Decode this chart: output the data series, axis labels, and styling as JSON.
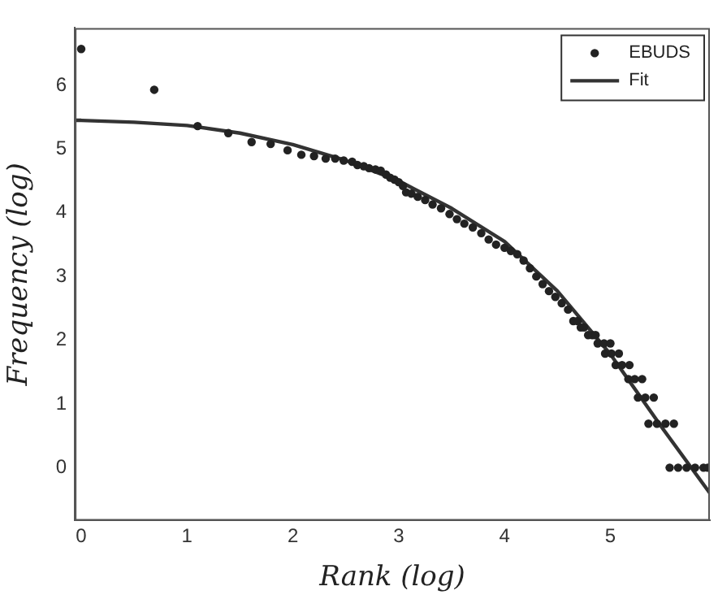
{
  "chart_data": {
    "type": "scatter",
    "xlabel": "Rank (log)",
    "ylabel": "Frequency (log)",
    "xlim": [
      -0.06,
      5.94
    ],
    "ylim": [
      -0.83,
      6.9
    ],
    "xticks": [
      0,
      1,
      2,
      3,
      4,
      5
    ],
    "yticks": [
      0,
      1,
      2,
      3,
      4,
      5,
      6
    ],
    "grid": false,
    "legend": "top right",
    "marker": "circle",
    "series": [
      {
        "name": "EBUDS",
        "color": "#222222",
        "x": [
          0,
          0.69,
          1.1,
          1.39,
          1.61,
          1.79,
          1.95,
          2.08,
          2.2,
          2.31,
          2.4,
          2.48,
          2.56,
          2.61,
          2.67,
          2.72,
          2.78,
          2.83,
          2.88,
          2.92,
          2.96,
          3.0,
          3.04,
          3.07,
          3.12,
          3.18,
          3.25,
          3.32,
          3.4,
          3.48,
          3.55,
          3.62,
          3.7,
          3.78,
          3.85,
          3.92,
          4.0,
          4.06,
          4.12,
          4.18,
          4.24,
          4.3,
          4.36,
          4.42,
          4.48,
          4.54,
          4.6,
          4.65,
          4.69,
          4.72,
          4.75,
          4.79,
          4.83,
          4.86,
          4.88,
          4.94,
          5.0,
          4.95,
          5.01,
          5.08,
          5.05,
          5.11,
          5.18,
          5.17,
          5.23,
          5.3,
          5.26,
          5.33,
          5.41,
          5.36,
          5.44,
          5.52,
          5.6,
          5.56,
          5.64,
          5.72,
          5.8,
          5.88,
          5.92
        ],
        "values": [
          6.57,
          5.93,
          5.36,
          5.25,
          5.11,
          5.08,
          4.98,
          4.91,
          4.89,
          4.85,
          4.85,
          4.82,
          4.8,
          4.75,
          4.73,
          4.7,
          4.68,
          4.66,
          4.6,
          4.55,
          4.52,
          4.48,
          4.42,
          4.32,
          4.3,
          4.25,
          4.2,
          4.13,
          4.07,
          3.98,
          3.9,
          3.83,
          3.77,
          3.68,
          3.58,
          3.5,
          3.45,
          3.4,
          3.35,
          3.25,
          3.13,
          3.0,
          2.88,
          2.77,
          2.68,
          2.58,
          2.48,
          2.3,
          2.3,
          2.2,
          2.2,
          2.08,
          2.08,
          2.08,
          1.95,
          1.95,
          1.95,
          1.79,
          1.79,
          1.79,
          1.61,
          1.61,
          1.61,
          1.39,
          1.39,
          1.39,
          1.1,
          1.1,
          1.1,
          0.69,
          0.69,
          0.69,
          0.69,
          0,
          0,
          0,
          0,
          0,
          0
        ]
      },
      {
        "name": "Fit",
        "type": "line",
        "color": "#333333",
        "marker": "none",
        "x": [
          -0.06,
          0,
          0.5,
          1,
          1.5,
          2,
          2.5,
          3,
          3.5,
          4,
          4.5,
          5,
          5.5,
          5.94
        ],
        "values": [
          5.45,
          5.45,
          5.42,
          5.37,
          5.25,
          5.07,
          4.82,
          4.5,
          4.07,
          3.55,
          2.77,
          1.78,
          0.6,
          -0.4
        ]
      }
    ]
  }
}
